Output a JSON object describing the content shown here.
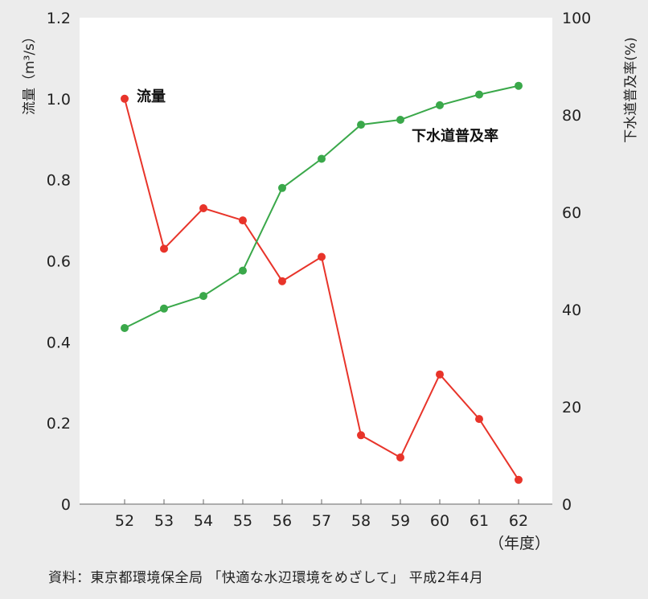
{
  "chart_data": {
    "type": "line",
    "x": [
      "52",
      "53",
      "54",
      "55",
      "56",
      "57",
      "58",
      "59",
      "60",
      "61",
      "62"
    ],
    "xlabel": "（年度）",
    "series": [
      {
        "name": "流量",
        "axis": "left",
        "color": "#e8342a",
        "values": [
          1.0,
          0.63,
          0.73,
          0.7,
          0.55,
          0.61,
          0.17,
          0.115,
          0.32,
          0.21,
          0.06
        ]
      },
      {
        "name": "下水道普及率",
        "axis": "right",
        "color": "#3aa84a",
        "values": [
          36.2,
          40.2,
          42.8,
          48.0,
          65.0,
          71.0,
          78.0,
          79.0,
          82.0,
          84.2,
          86.0
        ]
      }
    ],
    "y_left": {
      "label": "流量（m³/s）",
      "range": [
        0,
        1.2
      ],
      "ticks": [
        "0",
        "0.2",
        "0.4",
        "0.6",
        "0.8",
        "1.0",
        "1.2"
      ]
    },
    "y_right": {
      "label": "下水道普及率(%)",
      "range": [
        0,
        100
      ],
      "ticks": [
        "0",
        "20",
        "40",
        "60",
        "80",
        "100"
      ]
    },
    "grid": false
  },
  "source": "資料：東京都環境保全局 「快適な水辺環境をめざして」 平成2年4月"
}
